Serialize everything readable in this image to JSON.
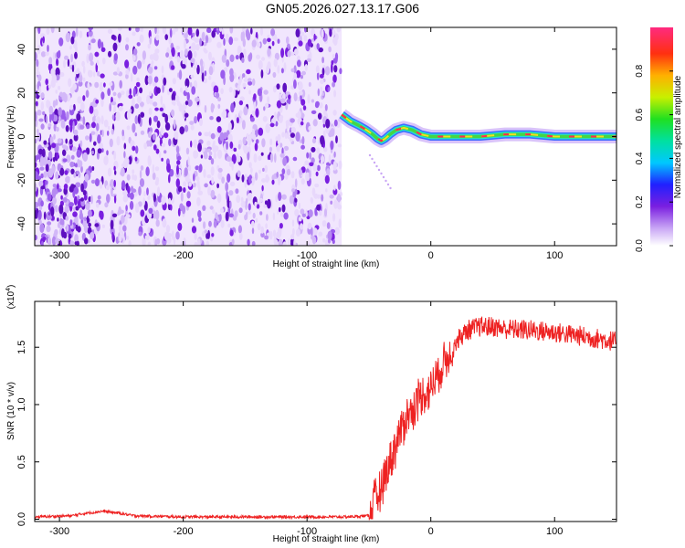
{
  "title": "GN05.2026.027.13.17.G06",
  "colors": {
    "snr_line": "#ee2222",
    "spectro_purple": "#7a1fe0"
  },
  "chart_data": [
    {
      "type": "heatmap",
      "name": "spectrogram",
      "xlabel": "Height of straight line (km)",
      "ylabel": "Frequency (Hz)",
      "xlim": [
        -320,
        150
      ],
      "ylim": [
        -50,
        50
      ],
      "x_ticks": [
        -300,
        -200,
        -100,
        0,
        100
      ],
      "y_ticks": [
        -40,
        -20,
        0,
        20,
        40
      ],
      "noise_region_x": [
        -320,
        -72
      ],
      "trace": {
        "x": [
          -72,
          -65,
          -58,
          -52,
          -47,
          -43,
          -40,
          -37,
          -33,
          -28,
          -22,
          -15,
          -8,
          0,
          20,
          40,
          60,
          80,
          100,
          120,
          150
        ],
        "y": [
          10,
          7,
          5,
          3,
          1,
          -1,
          -2,
          -1,
          1,
          3,
          4,
          3,
          1,
          0,
          0,
          0,
          1,
          1,
          0,
          0,
          0
        ]
      },
      "colorbar": {
        "label": "Normalized spectral amplitude",
        "range": [
          0,
          1
        ],
        "ticks": [
          0.0,
          0.2,
          0.4,
          0.6,
          0.8
        ]
      },
      "grid": false
    },
    {
      "type": "line",
      "name": "snr",
      "xlabel": "Height of straight line (km)",
      "ylabel": "SNR (10 * v/v)",
      "scale_label": "(x10",
      "scale_exp": "4",
      "scale_close": ")",
      "xlim": [
        -320,
        150
      ],
      "ylim": [
        -0.02,
        1.9
      ],
      "x_ticks": [
        -300,
        -200,
        -100,
        0,
        100
      ],
      "y_ticks": [
        0.0,
        0.5,
        1.0,
        1.5
      ],
      "series": [
        {
          "x": [
            -320,
            -290,
            -280,
            -265,
            -250,
            -240,
            -200,
            -150,
            -100,
            -70,
            -50,
            -45,
            -40,
            -35,
            -30,
            -25,
            -20,
            -15,
            -10,
            -5,
            0,
            5,
            10,
            15,
            20,
            25,
            30,
            40,
            50,
            60,
            80,
            100,
            120,
            150
          ],
          "y": [
            0.02,
            0.03,
            0.05,
            0.07,
            0.05,
            0.03,
            0.02,
            0.02,
            0.02,
            0.02,
            0.03,
            0.15,
            0.3,
            0.45,
            0.6,
            0.75,
            0.9,
            0.95,
            1.05,
            1.1,
            1.15,
            1.25,
            1.35,
            1.45,
            1.55,
            1.6,
            1.65,
            1.68,
            1.68,
            1.66,
            1.65,
            1.63,
            1.6,
            1.55
          ]
        }
      ],
      "grid": false
    }
  ]
}
